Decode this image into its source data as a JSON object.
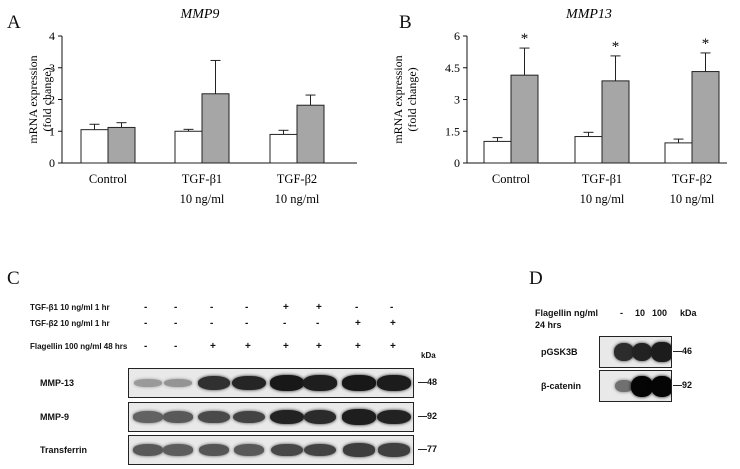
{
  "panel_labels": {
    "a": "A",
    "b": "B",
    "c": "C",
    "d": "D"
  },
  "chart_data": [
    {
      "type": "bar",
      "panel": "A",
      "title": "MMP9",
      "ylabel": "mRNA expression (fold change)",
      "ylabel_lines": [
        "mRNA expression",
        "(fold change)"
      ],
      "categories": [
        "Control",
        "TGF-β1 10 ng/ml",
        "TGF-β2 10 ng/ml"
      ],
      "category_lines": [
        [
          "Control"
        ],
        [
          "TGF-β1",
          "10 ng/ml"
        ],
        [
          "TGF-β2",
          "10 ng/ml"
        ]
      ],
      "yticks": [
        "0",
        "1",
        "2",
        "3",
        "4"
      ],
      "ylim": [
        0,
        4
      ],
      "series": [
        {
          "values": [
            1.05,
            1.0,
            0.9
          ],
          "errors": [
            0.17,
            0.06,
            0.13
          ],
          "color": "#ffffff"
        },
        {
          "values": [
            1.12,
            2.18,
            1.82
          ],
          "errors": [
            0.15,
            1.05,
            0.32
          ],
          "color": "#a6a6a6"
        }
      ],
      "significance": [
        "",
        "",
        ""
      ],
      "grid": false
    },
    {
      "type": "bar",
      "panel": "B",
      "title": "MMP13",
      "ylabel": "mRNA expression (fold change)",
      "ylabel_lines": [
        "mRNA expression",
        "(fold change)"
      ],
      "categories": [
        "Control",
        "TGF-β1 10 ng/ml",
        "TGF-β2 10 ng/ml"
      ],
      "category_lines": [
        [
          "Control"
        ],
        [
          "TGF-β1",
          "10 ng/ml"
        ],
        [
          "TGF-β2",
          "10 ng/ml"
        ]
      ],
      "yticks": [
        "0",
        "1.5",
        "3",
        "4.5",
        "6"
      ],
      "ylim": [
        0,
        6
      ],
      "series": [
        {
          "values": [
            1.02,
            1.25,
            0.95
          ],
          "errors": [
            0.18,
            0.2,
            0.18
          ],
          "color": "#ffffff"
        },
        {
          "values": [
            4.15,
            3.88,
            4.32
          ],
          "errors": [
            1.28,
            1.18,
            0.88
          ],
          "color": "#a6a6a6"
        }
      ],
      "significance": [
        "*",
        "*",
        "*"
      ],
      "grid": false
    }
  ],
  "blot_c": {
    "conditions": [
      {
        "label": "TGF-β1 10 ng/ml 1 hr",
        "signs": [
          "-",
          "-",
          "-",
          "-",
          "+",
          "+",
          "-",
          "-"
        ]
      },
      {
        "label": "TGF-β2 10 ng/ml 1 hr",
        "signs": [
          "-",
          "-",
          "-",
          "-",
          "-",
          "-",
          "+",
          "+"
        ]
      },
      {
        "label": "Flagellin 100 ng/ml 48 hrs",
        "signs": [
          "-",
          "-",
          "+",
          "+",
          "+",
          "+",
          "+",
          "+"
        ]
      }
    ],
    "kda_header": "kDa",
    "rows": [
      {
        "label": "MMP-13",
        "kda": "48",
        "intensity": [
          0.25,
          0.28,
          0.82,
          0.88,
          0.95,
          0.92,
          0.95,
          0.93
        ]
      },
      {
        "label": "MMP-9",
        "kda": "92",
        "intensity": [
          0.55,
          0.6,
          0.68,
          0.72,
          0.9,
          0.85,
          0.92,
          0.9
        ]
      },
      {
        "label": "Transferrin",
        "kda": "77",
        "intensity": [
          0.6,
          0.58,
          0.62,
          0.6,
          0.7,
          0.72,
          0.75,
          0.74
        ]
      }
    ]
  },
  "blot_d": {
    "header_line1": "Flagellin ng/ml",
    "header_line2": "24 hrs",
    "lanes": [
      "-",
      "10",
      "100"
    ],
    "kda_header": "kDa",
    "rows": [
      {
        "label": "pGSK3B",
        "kda": "46",
        "intensity": [
          0.8,
          0.85,
          0.88
        ]
      },
      {
        "label": "β-catenin",
        "kda": "92",
        "intensity": [
          0.45,
          1.0,
          1.0
        ]
      }
    ]
  }
}
